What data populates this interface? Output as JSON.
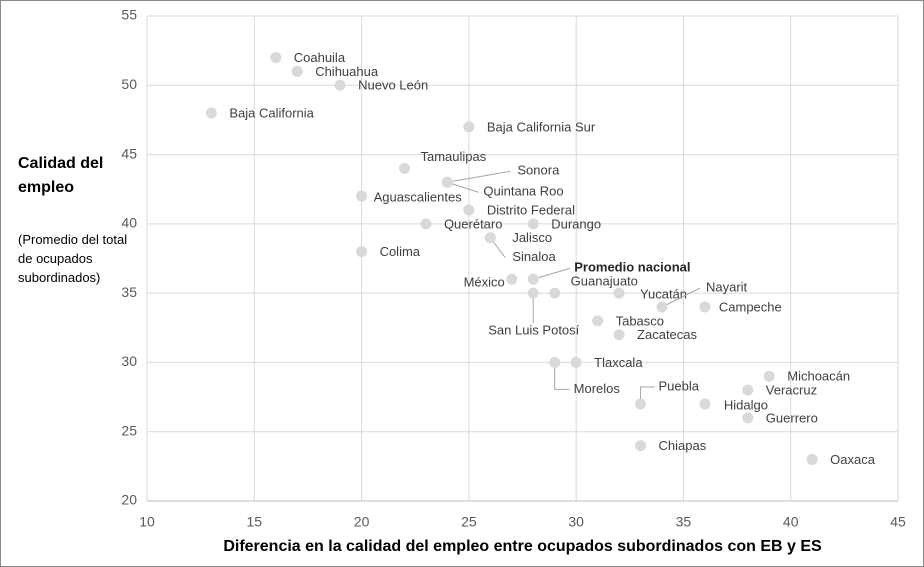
{
  "chart_data": {
    "type": "scatter",
    "x_label": "Diferencia en la calidad del empleo entre ocupados subordinados con EB y ES",
    "y_label": "Calidad del empleo",
    "y_sublabel": "(Promedio del total de ocupados subordinados)",
    "xlim": [
      10,
      45
    ],
    "xticks": [
      10,
      15,
      20,
      25,
      30,
      35,
      40,
      45
    ],
    "ylim": [
      20,
      55
    ],
    "yticks": [
      20,
      25,
      30,
      35,
      40,
      45,
      50,
      55
    ],
    "grid": true,
    "color": "#d9d9d9",
    "points": [
      {
        "label": "Coahuila",
        "x": 16,
        "y": 52
      },
      {
        "label": "Chihuahua",
        "x": 17,
        "y": 51
      },
      {
        "label": "Nuevo León",
        "x": 19,
        "y": 50
      },
      {
        "label": "Baja California",
        "x": 13,
        "y": 48
      },
      {
        "label": "Baja California Sur",
        "x": 25,
        "y": 47
      },
      {
        "label": "Tamaulipas",
        "x": 22,
        "y": 44
      },
      {
        "label": "Sonora",
        "x": 24,
        "y": 43
      },
      {
        "label": "Quintana Roo",
        "x": 24,
        "y": 43
      },
      {
        "label": "Aguascalientes",
        "x": 20,
        "y": 42
      },
      {
        "label": "Distrito Federal",
        "x": 25,
        "y": 41
      },
      {
        "label": "Querétaro",
        "x": 23,
        "y": 40
      },
      {
        "label": "Durango",
        "x": 28,
        "y": 40
      },
      {
        "label": "Jalisco",
        "x": 26,
        "y": 39
      },
      {
        "label": "Sinaloa",
        "x": 26,
        "y": 39
      },
      {
        "label": "Colima",
        "x": 20,
        "y": 38
      },
      {
        "label": "México",
        "x": 27,
        "y": 36
      },
      {
        "label": "Promedio nacional",
        "x": 28,
        "y": 36
      },
      {
        "label": "Guanajuato",
        "x": 29,
        "y": 35
      },
      {
        "label": "San Luis Potosí",
        "x": 28,
        "y": 35
      },
      {
        "label": "Yucatán",
        "x": 32,
        "y": 35
      },
      {
        "label": "Nayarit",
        "x": 34,
        "y": 34
      },
      {
        "label": "Campeche",
        "x": 36,
        "y": 34
      },
      {
        "label": "Tabasco",
        "x": 31,
        "y": 33
      },
      {
        "label": "Zacatecas",
        "x": 32,
        "y": 32
      },
      {
        "label": "Tlaxcala",
        "x": 30,
        "y": 30
      },
      {
        "label": "Morelos",
        "x": 29,
        "y": 30
      },
      {
        "label": "Michoacán",
        "x": 39,
        "y": 29
      },
      {
        "label": "Veracruz",
        "x": 38,
        "y": 28
      },
      {
        "label": "Puebla",
        "x": 33,
        "y": 27
      },
      {
        "label": "Hidalgo",
        "x": 36,
        "y": 27
      },
      {
        "label": "Guerrero",
        "x": 38,
        "y": 26
      },
      {
        "label": "Chiapas",
        "x": 33,
        "y": 24
      },
      {
        "label": "Oaxaca",
        "x": 41,
        "y": 23
      }
    ]
  }
}
